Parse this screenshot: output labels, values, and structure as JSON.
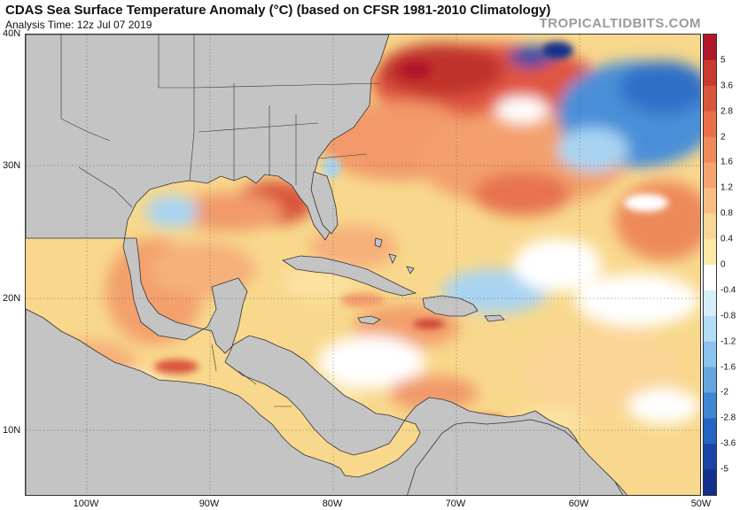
{
  "header": {
    "title": "CDAS Sea Surface Temperature Anomaly (°C) (based on CFSR 1981-2010 Climatology)",
    "analysis_time": "Analysis Time: 12z Jul 07 2019",
    "watermark": "TROPICALTIDBITS.COM"
  },
  "map": {
    "lat_labels": [
      "40N",
      "30N",
      "20N",
      "10N"
    ],
    "lon_labels": [
      "100W",
      "90W",
      "80W",
      "70W",
      "60W",
      "50W"
    ],
    "land_color": "#c4c4c4",
    "ocean_base_color": "#f8d88c"
  },
  "colorbar": {
    "labels": [
      "5",
      "3.6",
      "2.8",
      "2",
      "1.6",
      "1.2",
      "0.8",
      "0.4",
      "0",
      "-0.4",
      "-0.8",
      "-1.2",
      "-1.6",
      "-2",
      "-2.8",
      "-3.6",
      "-5"
    ],
    "colors": [
      "#b2182b",
      "#c83a30",
      "#d9553c",
      "#e86f4a",
      "#f08a5b",
      "#f5a46e",
      "#f8bd82",
      "#fbd596",
      "#fde9a6",
      "#ffffff",
      "#d6eef9",
      "#b4dcf4",
      "#8cc3ec",
      "#63a6e0",
      "#3f86d3",
      "#2464c2",
      "#1a44a8",
      "#12308c"
    ]
  }
}
